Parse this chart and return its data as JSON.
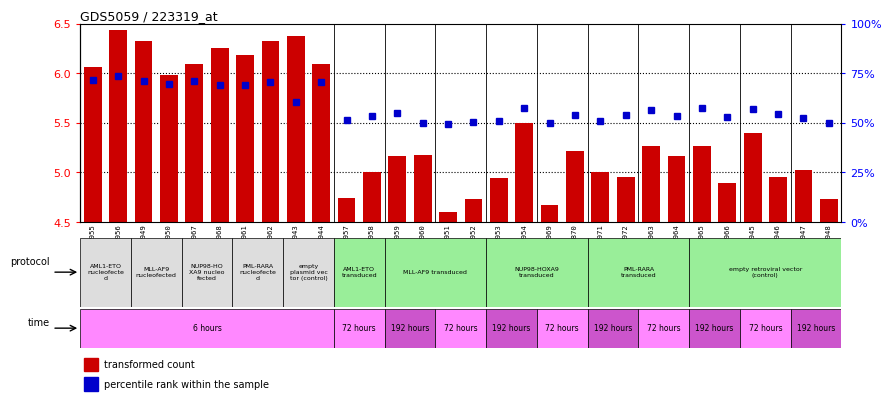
{
  "title": "GDS5059 / 223319_at",
  "bar_values": [
    6.06,
    6.44,
    6.32,
    5.98,
    6.09,
    6.25,
    6.18,
    6.32,
    6.37,
    6.09,
    4.74,
    5.0,
    5.17,
    5.18,
    4.6,
    4.73,
    4.94,
    5.5,
    4.67,
    5.22,
    5.0,
    4.95,
    5.27,
    5.17,
    5.27,
    4.89,
    5.4,
    4.95,
    5.02,
    4.73
  ],
  "dot_values": [
    5.93,
    5.97,
    5.92,
    5.89,
    5.92,
    5.88,
    5.88,
    5.91,
    5.71,
    5.91,
    5.53,
    5.57,
    5.6,
    5.5,
    5.49,
    5.51,
    5.52,
    5.65,
    5.5,
    5.58,
    5.52,
    5.58,
    5.63,
    5.57,
    5.65,
    5.56,
    5.64,
    5.59,
    5.55,
    5.5
  ],
  "sample_ids": [
    "GSM1376955",
    "GSM1376956",
    "GSM1376949",
    "GSM1376950",
    "GSM1376967",
    "GSM1376968",
    "GSM1376961",
    "GSM1376962",
    "GSM1376943",
    "GSM1376944",
    "GSM1376957",
    "GSM1376958",
    "GSM1376959",
    "GSM1376960",
    "GSM1376951",
    "GSM1376952",
    "GSM1376953",
    "GSM1376954",
    "GSM1376969",
    "GSM1376870",
    "GSM1376971",
    "GSM1376972",
    "GSM1376963",
    "GSM1376964",
    "GSM1376965",
    "GSM1376966",
    "GSM1376945",
    "GSM1376946",
    "GSM1376947",
    "GSM1376948"
  ],
  "ylim": [
    4.5,
    6.5
  ],
  "yticks": [
    4.5,
    5.0,
    5.5,
    6.0,
    6.5
  ],
  "right_yticks": [
    0,
    25,
    50,
    75,
    100
  ],
  "right_ylim": [
    0,
    100
  ],
  "bar_color": "#cc0000",
  "dot_color": "#0000cc",
  "protocol_row": [
    {
      "label": "AML1-ETO\nnucleofecte\nd",
      "start": 0,
      "end": 2,
      "color": "#dddddd"
    },
    {
      "label": "MLL-AF9\nnucleofected",
      "start": 2,
      "end": 4,
      "color": "#dddddd"
    },
    {
      "label": "NUP98-HO\nXA9 nucleo\nfected",
      "start": 4,
      "end": 6,
      "color": "#dddddd"
    },
    {
      "label": "PML-RARA\nnucleofecte\nd",
      "start": 6,
      "end": 8,
      "color": "#dddddd"
    },
    {
      "label": "empty\nplasmid vec\ntor (control)",
      "start": 8,
      "end": 10,
      "color": "#dddddd"
    },
    {
      "label": "AML1-ETO\ntransduced",
      "start": 10,
      "end": 12,
      "color": "#99ee99"
    },
    {
      "label": "MLL-AF9 transduced",
      "start": 12,
      "end": 16,
      "color": "#99ee99"
    },
    {
      "label": "NUP98-HOXA9\ntransduced",
      "start": 16,
      "end": 20,
      "color": "#99ee99"
    },
    {
      "label": "PML-RARA\ntransduced",
      "start": 20,
      "end": 24,
      "color": "#99ee99"
    },
    {
      "label": "empty retroviral vector\n(control)",
      "start": 24,
      "end": 30,
      "color": "#99ee99"
    }
  ],
  "time_row": [
    {
      "label": "6 hours",
      "start": 0,
      "end": 10,
      "color": "#ff88ff"
    },
    {
      "label": "72 hours",
      "start": 10,
      "end": 12,
      "color": "#ff88ff"
    },
    {
      "label": "192 hours",
      "start": 12,
      "end": 14,
      "color": "#cc55cc"
    },
    {
      "label": "72 hours",
      "start": 14,
      "end": 16,
      "color": "#ff88ff"
    },
    {
      "label": "192 hours",
      "start": 16,
      "end": 18,
      "color": "#cc55cc"
    },
    {
      "label": "72 hours",
      "start": 18,
      "end": 20,
      "color": "#ff88ff"
    },
    {
      "label": "192 hours",
      "start": 20,
      "end": 22,
      "color": "#cc55cc"
    },
    {
      "label": "72 hours",
      "start": 22,
      "end": 24,
      "color": "#ff88ff"
    },
    {
      "label": "192 hours",
      "start": 24,
      "end": 26,
      "color": "#cc55cc"
    },
    {
      "label": "72 hours",
      "start": 26,
      "end": 28,
      "color": "#ff88ff"
    },
    {
      "label": "192 hours",
      "start": 28,
      "end": 30,
      "color": "#cc55cc"
    }
  ],
  "group_dividers": [
    9.5,
    11.5,
    13.5,
    15.5,
    17.5,
    19.5,
    21.5,
    23.5,
    25.5,
    27.5
  ]
}
